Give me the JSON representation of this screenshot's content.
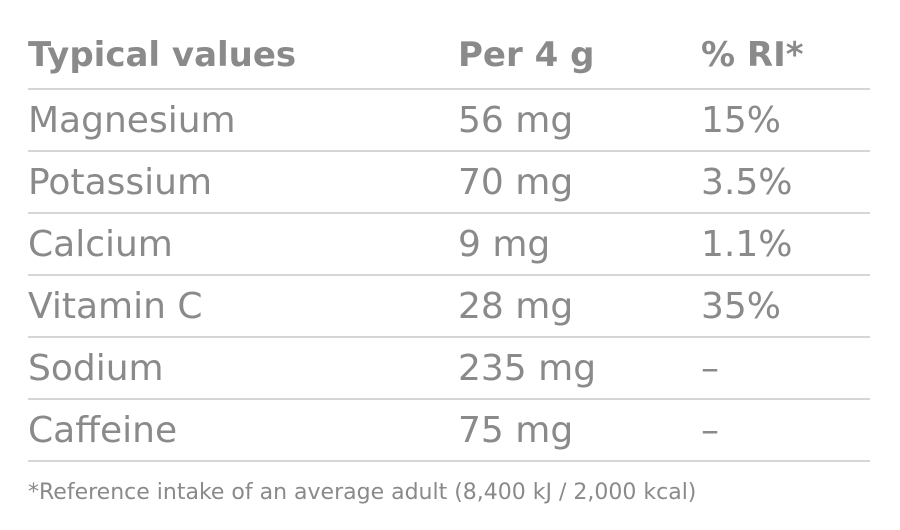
{
  "table": {
    "header": [
      "Typical values",
      "Per 4 g",
      "% RI*"
    ],
    "rows": [
      [
        "Magnesium",
        "56 mg",
        "15%"
      ],
      [
        "Potassium",
        "70 mg",
        "3.5%"
      ],
      [
        "Calcium",
        "9 mg",
        "1.1%"
      ],
      [
        "Vitamin C",
        "28 mg",
        "35%"
      ],
      [
        "Sodium",
        "235 mg",
        "–"
      ],
      [
        "Caffeine",
        "75 mg",
        "–"
      ]
    ]
  },
  "footnote": "*Reference intake of an average adult (8,400 kJ / 2,000 kcal)"
}
